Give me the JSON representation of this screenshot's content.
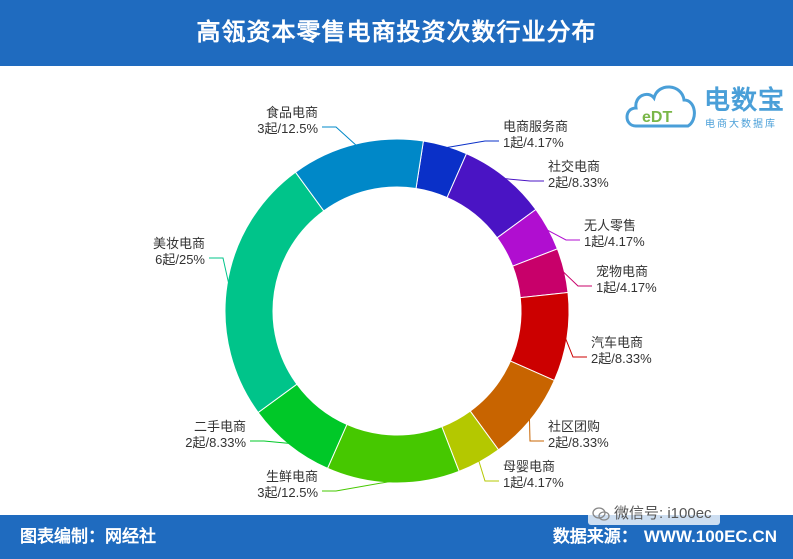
{
  "title": "高瓴资本零售电商投资次数行业分布",
  "footer": {
    "left": "图表编制：网经社",
    "source_label": "数据来源：",
    "source_value": "WWW.100EC.CN"
  },
  "watermark": "微信号: i100ec",
  "logo": {
    "name": "电数宝",
    "sub": "电商大数据库",
    "icon_text": "eDT"
  },
  "colors": {
    "header": "#1f6bbf",
    "logo": "#4a9fd8"
  },
  "chart_data": {
    "type": "pie",
    "subtype": "donut",
    "unit": "起",
    "slices": [
      {
        "name": "电商服务商",
        "value": 1,
        "percent": "4.17%",
        "label": "1起/4.17%",
        "color": "#0a30c8"
      },
      {
        "name": "社交电商",
        "value": 2,
        "percent": "8.33%",
        "label": "2起/8.33%",
        "color": "#4a14c4"
      },
      {
        "name": "无人零售",
        "value": 1,
        "percent": "4.17%",
        "label": "1起/4.17%",
        "color": "#b00ed0"
      },
      {
        "name": "宠物电商",
        "value": 1,
        "percent": "4.17%",
        "label": "1起/4.17%",
        "color": "#c8006a"
      },
      {
        "name": "汽车电商",
        "value": 2,
        "percent": "8.33%",
        "label": "2起/8.33%",
        "color": "#cc0000"
      },
      {
        "name": "社区团购",
        "value": 2,
        "percent": "8.33%",
        "label": "2起/8.33%",
        "color": "#c86400"
      },
      {
        "name": "母婴电商",
        "value": 1,
        "percent": "4.17%",
        "label": "1起/4.17%",
        "color": "#b4c800"
      },
      {
        "name": "生鲜电商",
        "value": 3,
        "percent": "12.5%",
        "label": "3起/12.5%",
        "color": "#46c800"
      },
      {
        "name": "二手电商",
        "value": 2,
        "percent": "8.33%",
        "label": "2起/8.33%",
        "color": "#00c828"
      },
      {
        "name": "美妆电商",
        "value": 6,
        "percent": "25%",
        "label": "6起/25%",
        "color": "#00c48a"
      },
      {
        "name": "食品电商",
        "value": 3,
        "percent": "12.5%",
        "label": "3起/12.5%",
        "color": "#0088c8"
      }
    ]
  }
}
